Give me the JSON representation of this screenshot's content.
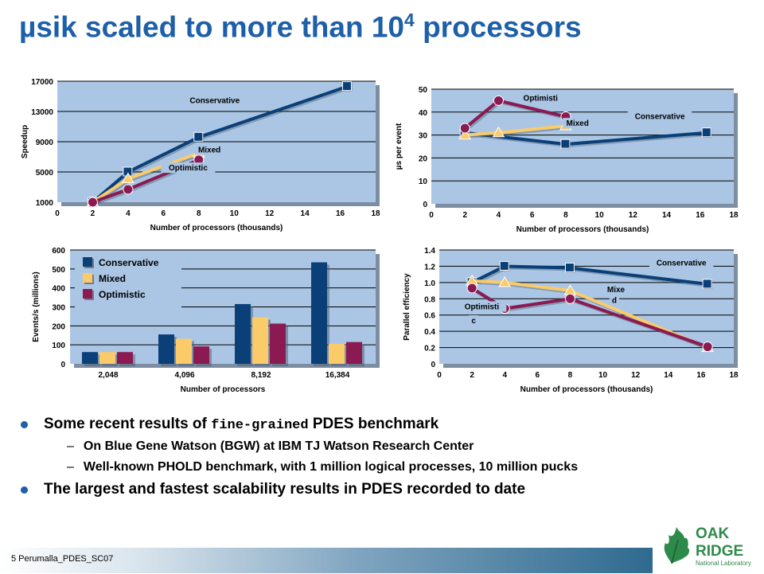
{
  "slide": {
    "title_main": "µsik scaled to more than 10",
    "title_sup": "4",
    "title_tail": " processors",
    "bullets": [
      {
        "level": 1,
        "pre": "Some recent results of ",
        "em": "fine-grained",
        "post": " PDES benchmark"
      },
      {
        "level": 2,
        "text": "On Blue Gene Watson (BGW) at IBM TJ Watson Research Center"
      },
      {
        "level": 2,
        "text": "Well-known PHOLD benchmark, with 1 million logical processes, 10 million pucks"
      },
      {
        "level": 1,
        "text": "The largest and fastest scalability results in PDES recorded to date"
      }
    ],
    "footer": "5  Perumalla_PDES_SC07",
    "logo": {
      "line1": "OAK",
      "line2": "RIDGE",
      "line3": "National Laboratory",
      "icon": "oak-leaf-icon"
    }
  },
  "colors": {
    "title": "#1d5fa8",
    "plot_bg": "#aac6e4",
    "conservative": "#0b3f78",
    "mixed": "#fbcb6a",
    "optimistic": "#8b1a52",
    "bullet": "#1d5fa8"
  },
  "chart_data": [
    {
      "id": "speedup",
      "type": "line",
      "xlabel": "Number of processors (thousands)",
      "ylabel": "Speedup",
      "xlim": [
        0,
        18
      ],
      "ylim": [
        1000,
        17000
      ],
      "xticks": [
        "0",
        "2",
        "4",
        "6",
        "8",
        "10",
        "12",
        "14",
        "16",
        "18"
      ],
      "yticks": [
        "1000",
        "5000",
        "9000",
        "13000",
        "17000"
      ],
      "series": [
        {
          "name": "Conservative",
          "x": [
            2,
            4,
            8,
            16.4
          ],
          "y": [
            1000,
            5000,
            9600,
            16300
          ]
        },
        {
          "name": "Mixed",
          "x": [
            2,
            4,
            8
          ],
          "y": [
            1000,
            4100,
            7500
          ]
        },
        {
          "name": "Optimistic",
          "x": [
            2,
            4,
            8
          ],
          "y": [
            1000,
            2700,
            6600
          ]
        }
      ],
      "labels": [
        {
          "text": "Conservative",
          "x": 8.9,
          "y": 14100
        },
        {
          "text": "Mixed",
          "x": 8.6,
          "y": 7600
        },
        {
          "text": "Optimistic",
          "x": 7.4,
          "y": 5200
        }
      ]
    },
    {
      "id": "us-per-event",
      "type": "line",
      "xlabel": "Number of processors (thousands)",
      "ylabel": "µs per event",
      "xlim": [
        0,
        18
      ],
      "ylim": [
        0,
        50
      ],
      "xticks": [
        "0",
        "2",
        "4",
        "6",
        "8",
        "10",
        "12",
        "14",
        "16",
        "18"
      ],
      "yticks": [
        "0",
        "10",
        "20",
        "30",
        "40",
        "50"
      ],
      "series": [
        {
          "name": "Conservative",
          "x": [
            2,
            8,
            16.4
          ],
          "y": [
            31,
            26,
            31
          ]
        },
        {
          "name": "Mixed",
          "x": [
            2,
            4,
            8
          ],
          "y": [
            30,
            31,
            34
          ]
        },
        {
          "name": "Optimistic",
          "x": [
            2,
            4,
            8
          ],
          "y": [
            33,
            45,
            38
          ]
        }
      ],
      "labels": [
        {
          "text": "Conservative",
          "x": 13.6,
          "y": 37
        },
        {
          "text": "Mixed",
          "x": 8.7,
          "y": 34
        },
        {
          "text": "Optimisti",
          "x": 6.5,
          "y": 45
        }
      ]
    },
    {
      "id": "events-per-second",
      "type": "bar",
      "xlabel": "Number of processors",
      "ylabel": "Events/s (millions)",
      "ylim": [
        0,
        600
      ],
      "categories": [
        "2,048",
        "4,096",
        "8,192",
        "16,384"
      ],
      "yticks": [
        "0",
        "100",
        "200",
        "300",
        "400",
        "500",
        "600"
      ],
      "series": [
        {
          "name": "Conservative",
          "values": [
            62,
            155,
            315,
            535
          ]
        },
        {
          "name": "Mixed",
          "values": [
            62,
            132,
            245,
            105
          ]
        },
        {
          "name": "Optimistic",
          "values": [
            62,
            92,
            212,
            115
          ]
        }
      ]
    },
    {
      "id": "parallel-efficiency",
      "type": "line",
      "xlabel": "Number of processors (thousands)",
      "ylabel": "Parallel efficiency",
      "xlim": [
        0,
        18
      ],
      "ylim": [
        0,
        1.4
      ],
      "xticks": [
        "0",
        "2",
        "4",
        "6",
        "8",
        "10",
        "12",
        "14",
        "16",
        "18"
      ],
      "yticks": [
        "0",
        "0.2",
        "0.4",
        "0.6",
        "0.8",
        "1.0",
        "1.2",
        "1.4"
      ],
      "series": [
        {
          "name": "Conservative",
          "x": [
            2,
            4,
            8,
            16.4
          ],
          "y": [
            1.0,
            1.2,
            1.18,
            0.98
          ]
        },
        {
          "name": "Mixed",
          "x": [
            2,
            4,
            8,
            16.4
          ],
          "y": [
            1.02,
            1.0,
            0.9,
            0.2
          ]
        },
        {
          "name": "Optimistic",
          "x": [
            2,
            4,
            8,
            16.4
          ],
          "y": [
            0.93,
            0.68,
            0.8,
            0.21
          ]
        }
      ],
      "labels": [
        {
          "text": "Conservative",
          "x": 14.8,
          "y": 1.21
        },
        {
          "text": "Mixe",
          "x": 10.8,
          "y": 0.88
        },
        {
          "text": "d",
          "x": 10.7,
          "y": 0.75
        },
        {
          "text": "Optimisti",
          "x": 2.6,
          "y": 0.67
        },
        {
          "text": "c",
          "x": 2.1,
          "y": 0.5
        }
      ]
    }
  ]
}
